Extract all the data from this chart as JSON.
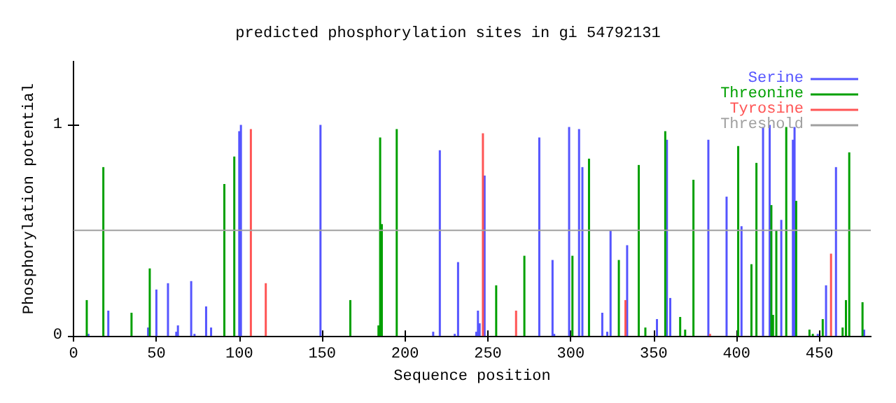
{
  "chart_data": {
    "type": "bar",
    "title": "predicted phosphorylation sites in gi 54792131",
    "xlabel": "Sequence position",
    "ylabel": "Phosphorylation potential",
    "xlim": [
      0,
      481
    ],
    "xticks": [
      0,
      50,
      100,
      150,
      200,
      250,
      300,
      350,
      400,
      450
    ],
    "ylim": [
      0,
      1.3
    ],
    "yticks": [
      0,
      1
    ],
    "legend": "top right",
    "series": [
      {
        "name": "Serine",
        "color": "#5555ff",
        "x": [
          9,
          21,
          45,
          50,
          57,
          62,
          63,
          71,
          73,
          80,
          83,
          100,
          101,
          149,
          217,
          221,
          230,
          232,
          243,
          244,
          245,
          248,
          281,
          289,
          290,
          299,
          305,
          307,
          319,
          322,
          324,
          334,
          352,
          358,
          360,
          383,
          394,
          403,
          416,
          420,
          427,
          434,
          435,
          449,
          454,
          460,
          477
        ],
        "values": [
          0.01,
          0.12,
          0.04,
          0.22,
          0.25,
          0.02,
          0.05,
          0.26,
          0.01,
          0.14,
          0.04,
          0.97,
          1.0,
          1.0,
          0.02,
          0.88,
          0.01,
          0.35,
          0.02,
          0.12,
          0.06,
          0.76,
          0.94,
          0.36,
          0.01,
          0.99,
          0.98,
          0.8,
          0.11,
          0.02,
          0.5,
          0.43,
          0.08,
          0.93,
          0.18,
          0.93,
          0.66,
          0.52,
          0.99,
          1.0,
          0.55,
          0.93,
          0.99,
          0.01,
          0.24,
          0.8,
          0.03
        ]
      },
      {
        "name": "Threonine",
        "color": "#00a000",
        "x": [
          8,
          18,
          35,
          46,
          91,
          97,
          167,
          184,
          185,
          186,
          195,
          255,
          272,
          301,
          311,
          329,
          341,
          345,
          357,
          366,
          369,
          374,
          401,
          409,
          412,
          421,
          422,
          424,
          430,
          436,
          444,
          446,
          452,
          464,
          466,
          468,
          476
        ],
        "values": [
          0.17,
          0.8,
          0.11,
          0.32,
          0.72,
          0.85,
          0.17,
          0.05,
          0.94,
          0.53,
          0.98,
          0.24,
          0.38,
          0.38,
          0.84,
          0.36,
          0.81,
          0.04,
          0.97,
          0.09,
          0.03,
          0.74,
          0.9,
          0.34,
          0.82,
          0.62,
          0.1,
          0.5,
          0.99,
          0.64,
          0.03,
          0.01,
          0.08,
          0.04,
          0.17,
          0.87,
          0.16
        ]
      },
      {
        "name": "Tyrosine",
        "color": "#ff5555",
        "x": [
          107,
          116,
          247,
          267,
          333,
          384,
          457
        ],
        "values": [
          0.98,
          0.25,
          0.96,
          0.12,
          0.17,
          0.01,
          0.39
        ]
      }
    ],
    "ref_lines": [
      {
        "axis": "y",
        "value": 0.5,
        "label": "Threshold",
        "color": "#a0a0a0"
      }
    ]
  }
}
